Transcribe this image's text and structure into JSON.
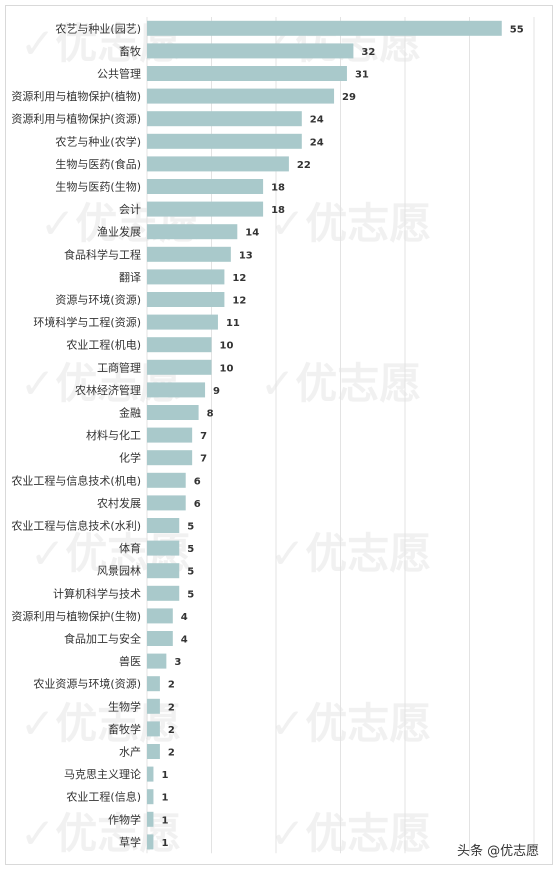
{
  "chart_data": {
    "type": "bar",
    "orientation": "horizontal",
    "categories": [
      "农艺与种业(园艺)",
      "畜牧",
      "公共管理",
      "资源利用与植物保护(植物)",
      "资源利用与植物保护(资源)",
      "农艺与种业(农学)",
      "生物与医药(食品)",
      "生物与医药(生物)",
      "会计",
      "渔业发展",
      "食品科学与工程",
      "翻译",
      "资源与环境(资源)",
      "环境科学与工程(资源)",
      "农业工程(机电)",
      "工商管理",
      "农林经济管理",
      "金融",
      "材料与化工",
      "化学",
      "农业工程与信息技术(机电)",
      "农村发展",
      "农业工程与信息技术(水利)",
      "体育",
      "风景园林",
      "计算机科学与技术",
      "资源利用与植物保护(生物)",
      "食品加工与安全",
      "兽医",
      "农业资源与环境(资源)",
      "生物学",
      "畜牧学",
      "水产",
      "马克思主义理论",
      "农业工程(信息)",
      "作物学",
      "草学"
    ],
    "values": [
      55,
      32,
      31,
      29,
      24,
      24,
      22,
      18,
      18,
      14,
      13,
      12,
      12,
      11,
      10,
      10,
      9,
      8,
      7,
      7,
      6,
      6,
      5,
      5,
      5,
      5,
      4,
      4,
      3,
      2,
      2,
      2,
      2,
      1,
      1,
      1,
      1
    ],
    "xlim": [
      0,
      60
    ],
    "grid": true,
    "bar_color": "#a9c9cb",
    "data_labels": true
  },
  "watermark": "优志愿",
  "credit": "头条 @优志愿"
}
